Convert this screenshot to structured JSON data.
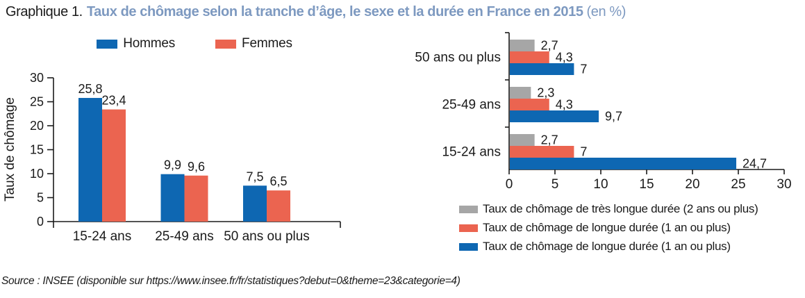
{
  "header": {
    "prefix": "Graphique 1.",
    "title_bold": "Taux de chômage selon la tranche d’âge, le sexe et la durée en France en 2015",
    "title_suffix": "(en %)"
  },
  "colors": {
    "blue": "#0e67b2",
    "red": "#eb6450",
    "gray": "#a6a6a6",
    "title_blue": "#7d99c0",
    "axis": "#1a1a1a"
  },
  "source": "Source : INSEE (disponible sur https://www.insee.fr/fr/statistiques?debut=0&theme=23&categorie=4)",
  "chart_data": [
    {
      "type": "bar",
      "orientation": "vertical",
      "title": "",
      "xlabel": "",
      "ylabel": "Taux de chômage",
      "categories": [
        "15-24 ans",
        "25-49 ans",
        "50 ans ou plus"
      ],
      "series": [
        {
          "name": "Hommes",
          "color_key": "blue",
          "values": [
            25.8,
            9.9,
            7.5
          ]
        },
        {
          "name": "Femmes",
          "color_key": "red",
          "values": [
            23.4,
            9.6,
            6.5
          ]
        }
      ],
      "ylim": [
        0,
        30
      ],
      "yticks": [
        0,
        5,
        10,
        15,
        20,
        25,
        30
      ],
      "grid": false,
      "legend_position": "top",
      "value_labels": true,
      "decimal_separator": ","
    },
    {
      "type": "bar",
      "orientation": "horizontal",
      "title": "",
      "xlabel": "",
      "ylabel": "",
      "categories": [
        "50 ans ou plus",
        "25-49 ans",
        "15-24 ans"
      ],
      "series": [
        {
          "name": "Taux de chômage de très longue durée (2 ans ou plus)",
          "color_key": "gray",
          "values": [
            2.7,
            2.3,
            2.7
          ]
        },
        {
          "name": "Taux de chômage de longue durée (1 an ou plus)",
          "color_key": "red",
          "values": [
            4.3,
            4.3,
            7
          ]
        },
        {
          "name": "Taux de chômage de longue durée (1 an ou plus)",
          "color_key": "blue",
          "values": [
            7,
            9.7,
            24.7
          ]
        }
      ],
      "xlim": [
        0,
        30
      ],
      "xticks": [
        0,
        5,
        10,
        15,
        20,
        25,
        30
      ],
      "grid": false,
      "legend_position": "bottom",
      "value_labels": true,
      "decimal_separator": ","
    }
  ]
}
